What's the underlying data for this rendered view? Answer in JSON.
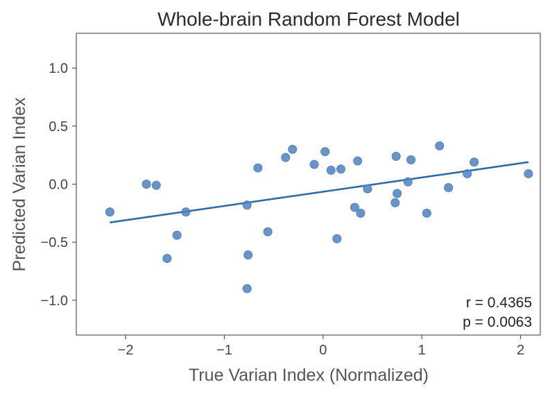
{
  "chart_data": {
    "type": "scatter",
    "title": "Whole-brain Random Forest Model",
    "xlabel": "True Varian Index (Normalized)",
    "ylabel": "Predicted Varian Index",
    "xlim": [
      -2.5,
      2.2
    ],
    "ylim": [
      -1.3,
      1.3
    ],
    "xticks": [
      -2,
      -1,
      0,
      1,
      2
    ],
    "xtick_labels": [
      "−2",
      "−1",
      "0",
      "1",
      "2"
    ],
    "yticks": [
      1.0,
      0.5,
      0.0,
      -0.5,
      -1.0
    ],
    "ytick_labels": [
      "1.0",
      "0.5",
      "0.0",
      "−0.5",
      "−1.0"
    ],
    "grid": false,
    "point_color": "#4f81bd",
    "line_color": "#2e6da4",
    "points": [
      {
        "x": -2.16,
        "y": -0.24
      },
      {
        "x": -1.79,
        "y": 0.0
      },
      {
        "x": -1.69,
        "y": -0.01
      },
      {
        "x": -1.58,
        "y": -0.64
      },
      {
        "x": -1.48,
        "y": -0.44
      },
      {
        "x": -1.39,
        "y": -0.24
      },
      {
        "x": -0.77,
        "y": -0.18
      },
      {
        "x": -0.76,
        "y": -0.61
      },
      {
        "x": -0.77,
        "y": -0.9
      },
      {
        "x": -0.66,
        "y": 0.14
      },
      {
        "x": -0.56,
        "y": -0.41
      },
      {
        "x": -0.38,
        "y": 0.23
      },
      {
        "x": -0.31,
        "y": 0.3
      },
      {
        "x": -0.09,
        "y": 0.17
      },
      {
        "x": 0.02,
        "y": 0.28
      },
      {
        "x": 0.08,
        "y": 0.12
      },
      {
        "x": 0.14,
        "y": -0.47
      },
      {
        "x": 0.18,
        "y": 0.13
      },
      {
        "x": 0.32,
        "y": -0.2
      },
      {
        "x": 0.35,
        "y": 0.2
      },
      {
        "x": 0.38,
        "y": -0.25
      },
      {
        "x": 0.45,
        "y": -0.04
      },
      {
        "x": 0.73,
        "y": -0.16
      },
      {
        "x": 0.74,
        "y": 0.24
      },
      {
        "x": 0.75,
        "y": -0.08
      },
      {
        "x": 0.86,
        "y": 0.02
      },
      {
        "x": 0.89,
        "y": 0.21
      },
      {
        "x": 1.05,
        "y": -0.25
      },
      {
        "x": 1.18,
        "y": 0.33
      },
      {
        "x": 1.27,
        "y": -0.03
      },
      {
        "x": 1.46,
        "y": 0.09
      },
      {
        "x": 1.53,
        "y": 0.19
      },
      {
        "x": 2.08,
        "y": 0.09
      }
    ],
    "fit_line": {
      "x": [
        -2.16,
        2.08
      ],
      "y": [
        -0.33,
        0.19
      ]
    },
    "annotations": [
      "r = 0.4365",
      "p = 0.0063"
    ]
  }
}
